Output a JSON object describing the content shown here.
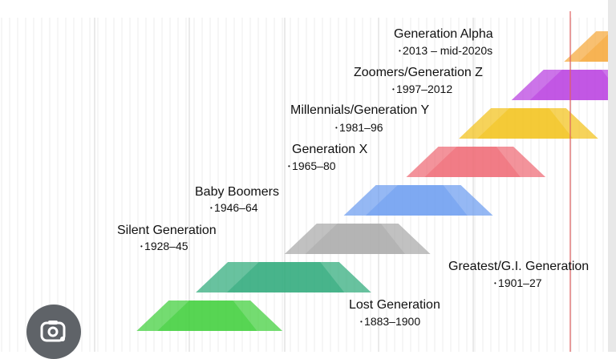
{
  "chart_data": {
    "type": "generation-timeline",
    "title": "",
    "x_range": [
      1860,
      2030
    ],
    "marker_year": 2024,
    "generations": [
      {
        "name": "Generation Alpha",
        "years": "2013 – mid-2020s",
        "start": 2013,
        "end": 2025,
        "color": "#f5a83a"
      },
      {
        "name": "Zoomers/Generation Z",
        "years": "1997–2012",
        "start": 1997,
        "end": 2012,
        "color": "#b93fe0"
      },
      {
        "name": "Millennials/Generation Y",
        "years": "1981–96",
        "start": 1981,
        "end": 1996,
        "color": "#f2c21b"
      },
      {
        "name": "Generation X",
        "years": "1965–80",
        "start": 1965,
        "end": 1980,
        "color": "#ef6a75"
      },
      {
        "name": "Baby Boomers",
        "years": "1946–64",
        "start": 1946,
        "end": 1964,
        "color": "#6c9cf0"
      },
      {
        "name": "Silent Generation",
        "years": "1928–45",
        "start": 1928,
        "end": 1945,
        "color": "#a9a9a9"
      },
      {
        "name": "Greatest/G.I. Generation",
        "years": "1901–27",
        "start": 1901,
        "end": 1927,
        "color": "#2eaa7a"
      },
      {
        "name": "Lost Generation",
        "years": "1883–1900",
        "start": 1883,
        "end": 1900,
        "color": "#3fcf3a"
      }
    ]
  },
  "lens_button": {
    "icon": "camera-search-icon"
  }
}
